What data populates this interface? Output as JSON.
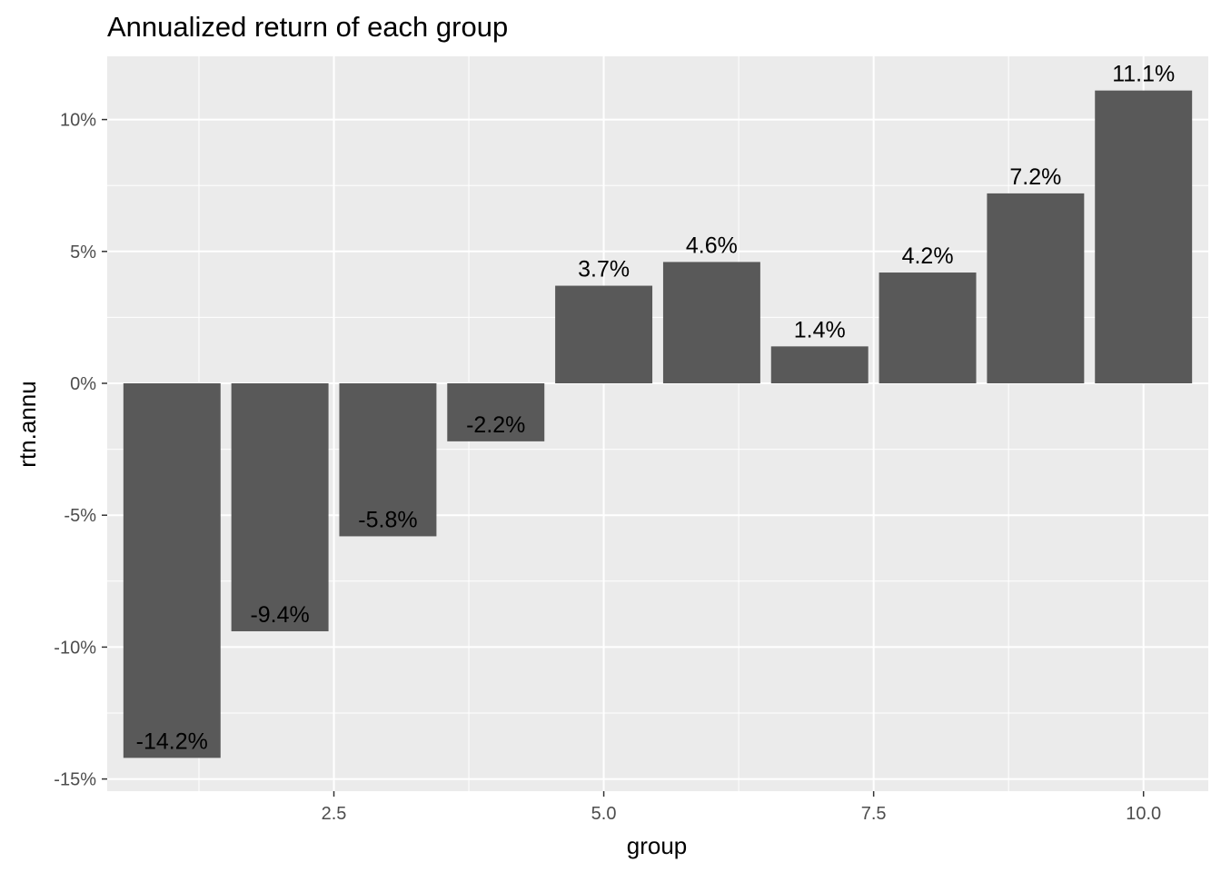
{
  "chart_data": {
    "type": "bar",
    "title": "Annualized return of each group",
    "xlabel": "group",
    "ylabel": "rtn.annu",
    "x": [
      1,
      2,
      3,
      4,
      5,
      6,
      7,
      8,
      9,
      10
    ],
    "values": [
      -0.142,
      -0.094,
      -0.058,
      -0.022,
      0.037,
      0.046,
      0.014,
      0.042,
      0.072,
      0.111
    ],
    "value_labels": [
      "-14.2%",
      "-9.4%",
      "-5.8%",
      "-2.2%",
      "3.7%",
      "4.6%",
      "1.4%",
      "4.2%",
      "7.2%",
      "11.1%"
    ],
    "xlim": [
      0.4,
      10.6
    ],
    "ylim": [
      -0.15,
      0.12
    ],
    "x_ticks": [
      2.5,
      5.0,
      7.5,
      10.0
    ],
    "x_tick_labels": [
      "2.5",
      "5.0",
      "7.5",
      "10.0"
    ],
    "y_ticks": [
      -0.15,
      -0.1,
      -0.05,
      0.0,
      0.05,
      0.1
    ],
    "y_tick_labels": [
      "-15%",
      "-10%",
      "-5%",
      "0%",
      "5%",
      "10%"
    ],
    "grid": true,
    "legend": "none",
    "colors": {
      "bar": "#595959",
      "panel": "#ebebeb",
      "grid": "#ffffff",
      "tick_text": "#4d4d4d"
    }
  }
}
